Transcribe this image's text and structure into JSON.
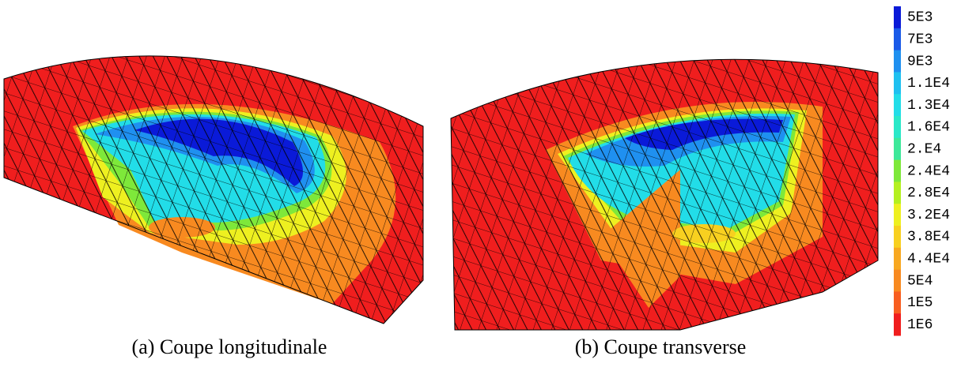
{
  "figures": [
    {
      "caption": "(a) Coupe longitudinale"
    },
    {
      "caption": "(b) Coupe transverse"
    }
  ],
  "colorbar": {
    "entries": [
      {
        "label": "5E3",
        "color": "#0a1ad8"
      },
      {
        "label": "7E3",
        "color": "#1a5ae8"
      },
      {
        "label": "9E3",
        "color": "#1f90f0"
      },
      {
        "label": "1.1E4",
        "color": "#1fc0f0"
      },
      {
        "label": "1.3E4",
        "color": "#22dde8"
      },
      {
        "label": "1.6E4",
        "color": "#2ae8c8"
      },
      {
        "label": "2.E4",
        "color": "#3ee89a"
      },
      {
        "label": "2.4E4",
        "color": "#7ee83a"
      },
      {
        "label": "2.8E4",
        "color": "#b4f020"
      },
      {
        "label": "3.2E4",
        "color": "#eef020"
      },
      {
        "label": "3.8E4",
        "color": "#f8d020"
      },
      {
        "label": "4.4E4",
        "color": "#f8a820"
      },
      {
        "label": "5E4",
        "color": "#f88a20"
      },
      {
        "label": "1E5",
        "color": "#f85e20"
      },
      {
        "label": "1E6",
        "color": "#f01e1e"
      }
    ]
  }
}
